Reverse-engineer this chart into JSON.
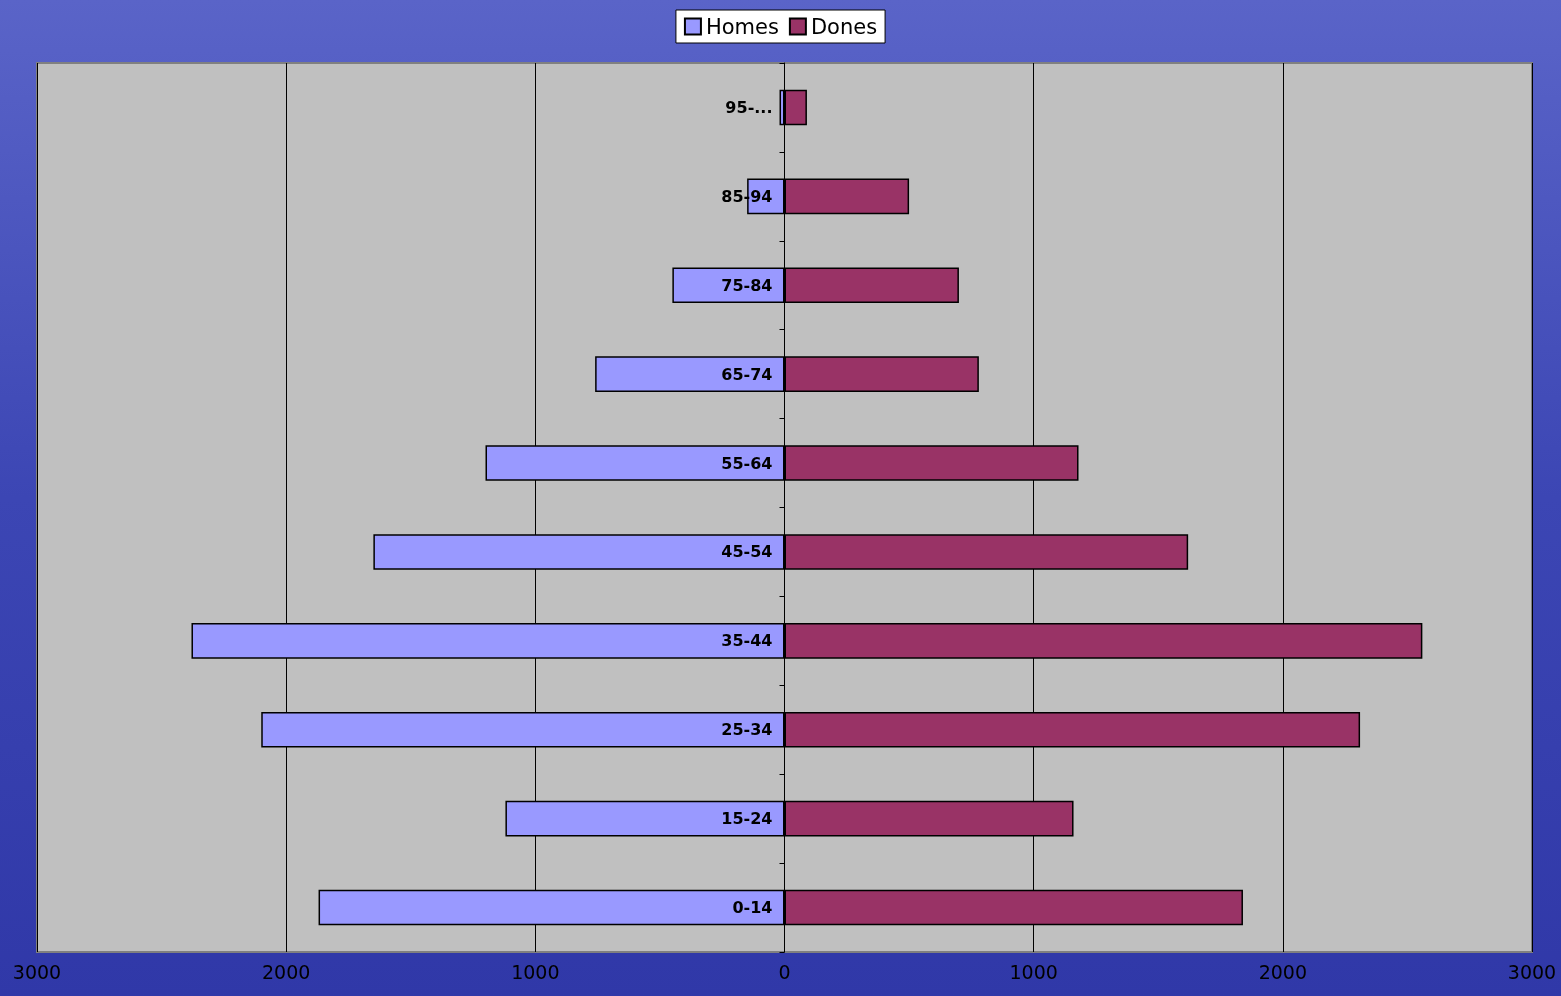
{
  "chart_data": {
    "type": "bar",
    "orientation": "horizontal",
    "stacked": true,
    "categories": [
      "95-...",
      "85-94",
      "75-84",
      "65-74",
      "55-64",
      "45-54",
      "35-44",
      "25-34",
      "15-24",
      "0-14"
    ],
    "series": [
      {
        "name": "Homes",
        "color": "#9999ff",
        "values": [
          -20,
          -150,
          -450,
          -760,
          -1200,
          -1650,
          -2380,
          -2100,
          -1120,
          -1870
        ]
      },
      {
        "name": "Dones",
        "color": "#993366",
        "values": [
          90,
          500,
          700,
          780,
          1180,
          1620,
          2560,
          2310,
          1160,
          1840
        ]
      }
    ],
    "xlim": [
      -3000,
      3000
    ],
    "xticks": [
      {
        "value": -3000,
        "label": "3000"
      },
      {
        "value": -2000,
        "label": "2000"
      },
      {
        "value": -1000,
        "label": "1000"
      },
      0,
      1000,
      2000,
      3000
    ],
    "grid": "x",
    "legend": "top"
  }
}
